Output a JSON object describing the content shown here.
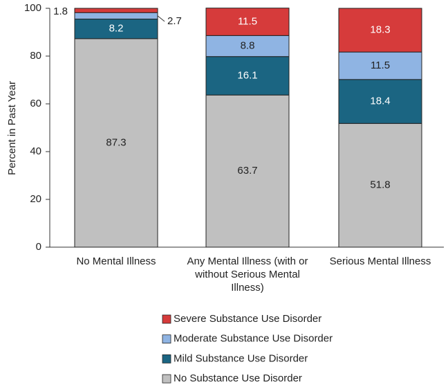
{
  "chart_data": {
    "type": "stacked_bar",
    "y_label": "Percent in Past Year",
    "categories": [
      "No Mental Illness",
      "Any Mental Illness (with or without Serious Mental Illness)",
      "Serious Mental Illness"
    ],
    "series": [
      {
        "name": "No Substance Use Disorder",
        "color": "#c0c0c0",
        "values": [
          87.3,
          63.7,
          51.8
        ]
      },
      {
        "name": "Mild Substance Use Disorder",
        "color": "#1b6582",
        "values": [
          8.2,
          16.1,
          18.4
        ]
      },
      {
        "name": "Moderate Substance Use Disorder",
        "color": "#8fb4e3",
        "values": [
          2.7,
          8.8,
          11.5
        ]
      },
      {
        "name": "Severe Substance Use Disorder",
        "color": "#d63b3b",
        "values": [
          1.8,
          11.5,
          18.3
        ]
      }
    ],
    "ylim": [
      0,
      100
    ],
    "yticks": [
      0,
      20,
      40,
      60,
      80,
      100
    ],
    "grid": false
  }
}
